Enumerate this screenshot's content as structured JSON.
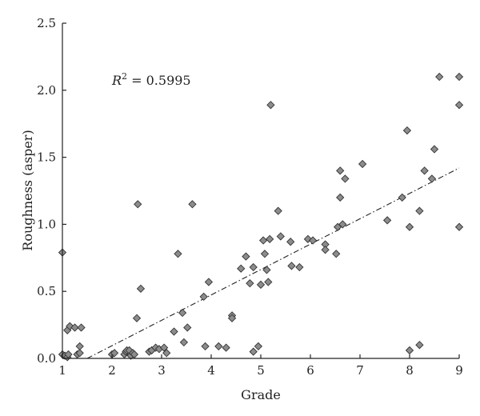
{
  "chart_data": {
    "type": "scatter",
    "title": "",
    "xlabel": "Grade",
    "ylabel": "Roughness (asper)",
    "xlim": [
      1,
      9
    ],
    "ylim": [
      0,
      2.5
    ],
    "x_ticks": [
      1,
      2,
      3,
      4,
      5,
      6,
      7,
      8,
      9
    ],
    "y_ticks": [
      0.0,
      0.5,
      1.0,
      1.5,
      2.0,
      2.5
    ],
    "grid": false,
    "annotation": {
      "r2_symbol": "R",
      "r2_sup": "2",
      "r2_text": " = 0.5995"
    },
    "marker_color": "#8c8c8c",
    "trendline": {
      "style": "dash-dot",
      "x": [
        1.5,
        9
      ],
      "y": [
        0.0,
        1.42
      ]
    },
    "points": [
      [
        1.0,
        0.79
      ],
      [
        1.0,
        0.03
      ],
      [
        1.05,
        0.02
      ],
      [
        1.1,
        0.01
      ],
      [
        1.12,
        0.03
      ],
      [
        1.1,
        0.21
      ],
      [
        1.15,
        0.24
      ],
      [
        1.25,
        0.23
      ],
      [
        1.3,
        0.03
      ],
      [
        1.35,
        0.09
      ],
      [
        1.35,
        0.04
      ],
      [
        1.38,
        0.23
      ],
      [
        2.0,
        0.03
      ],
      [
        2.05,
        0.04
      ],
      [
        2.25,
        0.03
      ],
      [
        2.28,
        0.05
      ],
      [
        2.3,
        0.06
      ],
      [
        2.35,
        0.06
      ],
      [
        2.38,
        0.02
      ],
      [
        2.42,
        0.04
      ],
      [
        2.45,
        0.03
      ],
      [
        2.5,
        0.3
      ],
      [
        2.52,
        1.15
      ],
      [
        2.58,
        0.52
      ],
      [
        2.75,
        0.05
      ],
      [
        2.8,
        0.06
      ],
      [
        2.88,
        0.08
      ],
      [
        2.95,
        0.07
      ],
      [
        3.05,
        0.08
      ],
      [
        3.1,
        0.04
      ],
      [
        3.25,
        0.2
      ],
      [
        3.33,
        0.78
      ],
      [
        3.42,
        0.34
      ],
      [
        3.45,
        0.12
      ],
      [
        3.52,
        0.23
      ],
      [
        3.62,
        1.15
      ],
      [
        3.85,
        0.46
      ],
      [
        3.88,
        0.09
      ],
      [
        3.95,
        0.57
      ],
      [
        4.15,
        0.09
      ],
      [
        4.3,
        0.08
      ],
      [
        4.42,
        0.32
      ],
      [
        4.42,
        0.3
      ],
      [
        4.6,
        0.67
      ],
      [
        4.7,
        0.76
      ],
      [
        4.78,
        0.56
      ],
      [
        4.85,
        0.05
      ],
      [
        4.85,
        0.68
      ],
      [
        4.95,
        0.09
      ],
      [
        5.0,
        0.55
      ],
      [
        5.05,
        0.88
      ],
      [
        5.08,
        0.78
      ],
      [
        5.12,
        0.66
      ],
      [
        5.15,
        0.57
      ],
      [
        5.18,
        0.89
      ],
      [
        5.2,
        1.89
      ],
      [
        5.35,
        1.1
      ],
      [
        5.4,
        0.91
      ],
      [
        5.6,
        0.87
      ],
      [
        5.62,
        0.69
      ],
      [
        5.78,
        0.68
      ],
      [
        5.95,
        0.89
      ],
      [
        6.05,
        0.88
      ],
      [
        6.3,
        0.85
      ],
      [
        6.3,
        0.81
      ],
      [
        6.52,
        0.78
      ],
      [
        6.55,
        0.98
      ],
      [
        6.6,
        1.2
      ],
      [
        6.6,
        1.4
      ],
      [
        6.65,
        1.0
      ],
      [
        6.7,
        1.34
      ],
      [
        7.05,
        1.45
      ],
      [
        7.55,
        1.03
      ],
      [
        7.85,
        1.2
      ],
      [
        7.95,
        1.7
      ],
      [
        8.0,
        0.98
      ],
      [
        8.0,
        0.06
      ],
      [
        8.2,
        0.1
      ],
      [
        8.2,
        1.1
      ],
      [
        8.3,
        1.4
      ],
      [
        8.45,
        1.34
      ],
      [
        8.5,
        1.56
      ],
      [
        8.6,
        2.1
      ],
      [
        9.0,
        2.1
      ],
      [
        9.0,
        1.89
      ],
      [
        9.0,
        0.98
      ]
    ]
  }
}
